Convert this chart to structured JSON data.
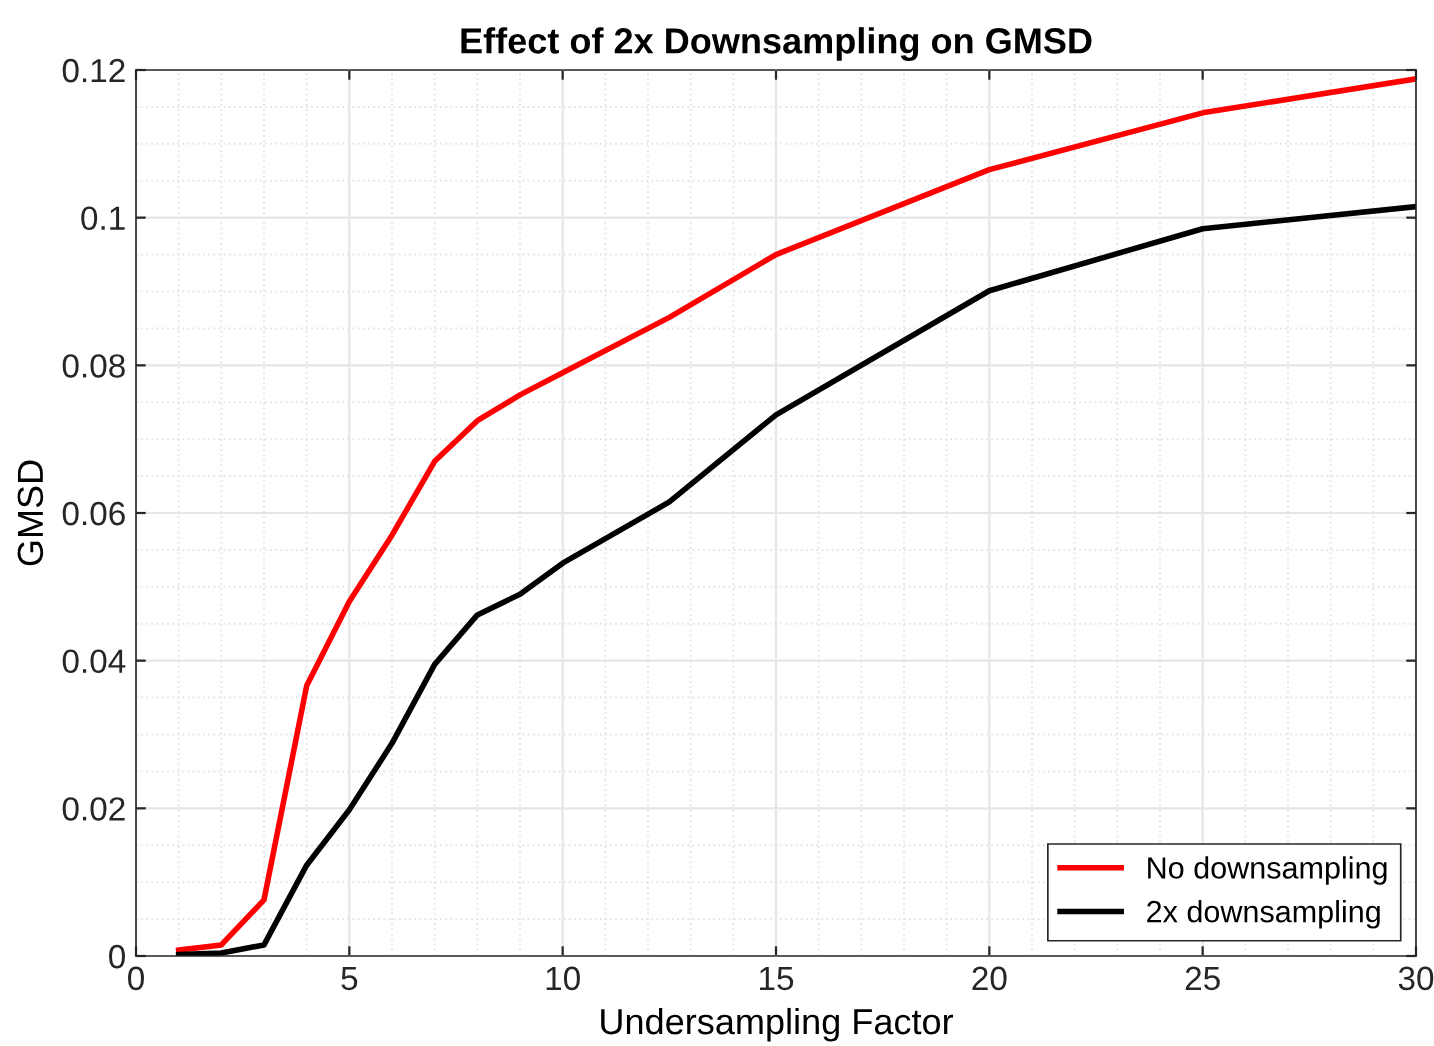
{
  "chart_data": {
    "type": "line",
    "title": "Effect of 2x Downsampling on GMSD",
    "xlabel": "Undersampling Factor",
    "ylabel": "GMSD",
    "xlim": [
      0,
      30
    ],
    "xticks": [
      0,
      5,
      10,
      15,
      20,
      25,
      30
    ],
    "ylim": [
      0,
      0.12
    ],
    "yticks": [
      0,
      0.02,
      0.04,
      0.06,
      0.08,
      0.1,
      0.12
    ],
    "grid": true,
    "legend": "bottom right",
    "marker": "none",
    "line_style": "solid",
    "series": [
      {
        "name": "No downsampling",
        "color": "#ff0000",
        "x": [
          1,
          2,
          3,
          4,
          5,
          6,
          7,
          8,
          9,
          10,
          12.5,
          15,
          20,
          25,
          30
        ],
        "values": [
          0.0008,
          0.0015,
          0.0076,
          0.0366,
          0.048,
          0.057,
          0.067,
          0.0725,
          0.076,
          0.079,
          0.0865,
          0.095,
          0.1065,
          0.1142,
          0.1188
        ]
      },
      {
        "name": "2x downsampling",
        "color": "#000000",
        "x": [
          1,
          2,
          3,
          4,
          5,
          6,
          7,
          8,
          9,
          10,
          12.5,
          15,
          20,
          25,
          30
        ],
        "values": [
          0.0002,
          0.0004,
          0.0015,
          0.0123,
          0.0198,
          0.0288,
          0.0395,
          0.0462,
          0.049,
          0.0532,
          0.0615,
          0.0733,
          0.0901,
          0.0985,
          0.1015
        ]
      }
    ]
  }
}
